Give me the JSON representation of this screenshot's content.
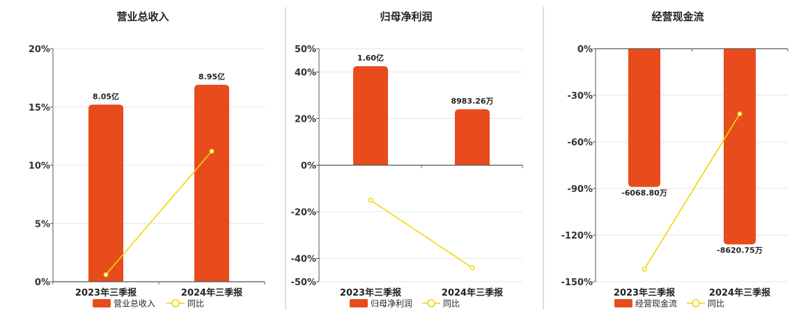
{
  "colors": {
    "bar": "#E84C1C",
    "line": "#F2D600",
    "grid": "#E6E6E6",
    "axis": "#555555",
    "divider": "#BBBBBB"
  },
  "chart_data": [
    {
      "type": "bar",
      "title": "营业总收入",
      "categories": [
        "2023年三季报",
        "2024年三季报"
      ],
      "series": [
        {
          "name": "营业总收入",
          "type": "bar",
          "values": [
            8.05,
            8.95
          ],
          "labels": [
            "8.05亿",
            "8.95亿"
          ],
          "axis": "left-bar"
        },
        {
          "name": "同比",
          "type": "line",
          "values": [
            0.6,
            11.2
          ],
          "axis": "left-percent"
        }
      ],
      "ylim": [
        0,
        20
      ],
      "yticks": [
        "0%",
        "5%",
        "10%",
        "15%",
        "20%"
      ],
      "ytick_values": [
        0,
        5,
        10,
        15,
        20
      ],
      "bar_heights_pct": [
        15.2,
        16.9
      ],
      "legend": [
        "营业总收入",
        "同比"
      ]
    },
    {
      "type": "bar",
      "title": "归母净利润",
      "categories": [
        "2023年三季报",
        "2024年三季报"
      ],
      "series": [
        {
          "name": "归母净利润",
          "type": "bar",
          "values": [
            16000,
            8983.26
          ],
          "labels": [
            "1.60亿",
            "8983.26万"
          ],
          "axis": "left-bar"
        },
        {
          "name": "同比",
          "type": "line",
          "values": [
            -15,
            -44
          ],
          "axis": "left-percent"
        }
      ],
      "ylim": [
        -50,
        50
      ],
      "yticks": [
        "-50%",
        "-40%",
        "-20%",
        "0%",
        "20%",
        "40%",
        "50%"
      ],
      "ytick_values": [
        -50,
        -40,
        -20,
        0,
        20,
        40,
        50
      ],
      "bar_heights_pct": [
        42.5,
        24
      ],
      "legend": [
        "归母净利润",
        "同比"
      ]
    },
    {
      "type": "bar",
      "title": "经营现金流",
      "categories": [
        "2023年三季报",
        "2024年三季报"
      ],
      "series": [
        {
          "name": "经营现金流",
          "type": "bar",
          "values": [
            -6068.8,
            -8620.75
          ],
          "labels": [
            "-6068.80万",
            "-8620.75万"
          ],
          "axis": "left-bar"
        },
        {
          "name": "同比",
          "type": "line",
          "values": [
            -142,
            -42
          ],
          "axis": "left-percent"
        }
      ],
      "ylim": [
        -150,
        0
      ],
      "yticks": [
        "-150%",
        "-120%",
        "-90%",
        "-60%",
        "-30%",
        "0%"
      ],
      "ytick_values": [
        -150,
        -120,
        -90,
        -60,
        -30,
        0
      ],
      "bar_heights_pct": [
        -89,
        -126
      ],
      "legend": [
        "经营现金流",
        "同比"
      ]
    }
  ]
}
